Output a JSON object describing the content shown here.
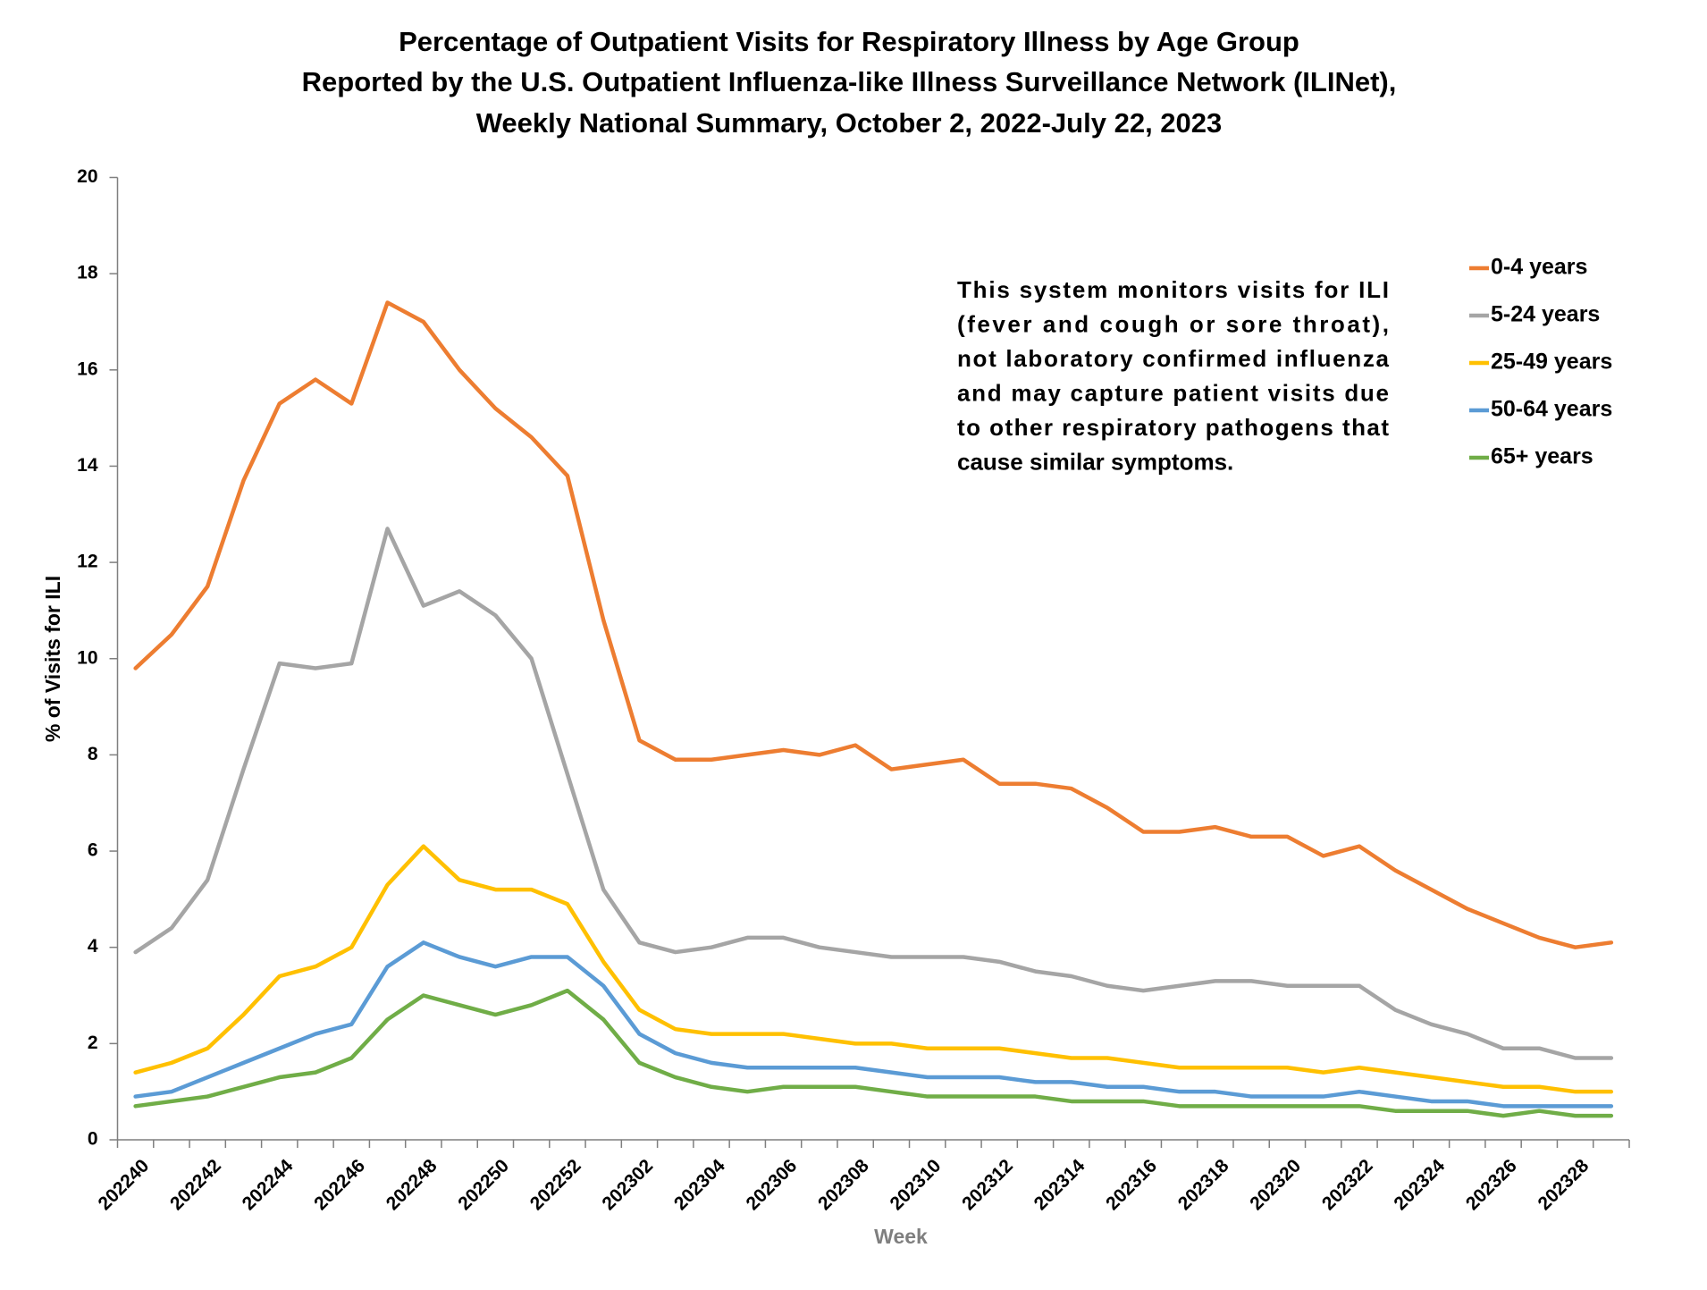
{
  "chart_data": {
    "type": "line",
    "title": [
      "Percentage of Outpatient Visits for Respiratory Illness by Age Group",
      "Reported by the U.S. Outpatient Influenza-like Illness Surveillance Network (ILINet),",
      "Weekly National Summary, October 2, 2022-July 22, 2023"
    ],
    "annotation": [
      "This system monitors visits for ILI",
      "(fever and cough or sore throat),",
      "not laboratory confirmed influenza",
      "and may capture patient visits due",
      "to other respiratory pathogens that",
      "cause similar symptoms."
    ],
    "x_label": "Week",
    "y_label": "% of Visits for ILI",
    "categories": [
      "202240",
      null,
      "202242",
      null,
      "202244",
      null,
      "202246",
      null,
      "202248",
      null,
      "202250",
      null,
      "202252",
      null,
      "202302",
      null,
      "202304",
      null,
      "202306",
      null,
      "202308",
      null,
      "202310",
      null,
      "202312",
      null,
      "202314",
      null,
      "202316",
      null,
      "202318",
      null,
      "202320",
      null,
      "202322",
      null,
      "202324",
      null,
      "202326",
      null,
      "202328",
      null
    ],
    "ylim": [
      0,
      20
    ],
    "yticks": [
      0,
      2,
      4,
      6,
      8,
      10,
      12,
      14,
      16,
      18,
      20
    ],
    "legend": "top-right",
    "series": [
      {
        "name": "0-4 years",
        "color": "#ED7D31",
        "values": [
          9.8,
          10.5,
          11.5,
          13.7,
          15.3,
          15.8,
          15.3,
          17.4,
          17.0,
          16.0,
          15.2,
          14.6,
          13.8,
          10.8,
          8.3,
          7.9,
          7.9,
          8.0,
          8.1,
          8.0,
          8.2,
          7.7,
          7.8,
          7.9,
          7.4,
          7.4,
          7.3,
          6.9,
          6.4,
          6.4,
          6.5,
          6.3,
          6.3,
          5.9,
          6.1,
          5.6,
          5.2,
          4.8,
          4.5,
          4.2,
          4.0,
          4.1
        ]
      },
      {
        "name": "5-24 years",
        "color": "#A5A5A5",
        "values": [
          3.9,
          4.4,
          5.4,
          7.7,
          9.9,
          9.8,
          9.9,
          12.7,
          11.1,
          11.4,
          10.9,
          10.0,
          7.6,
          5.2,
          4.1,
          3.9,
          4.0,
          4.2,
          4.2,
          4.0,
          3.9,
          3.8,
          3.8,
          3.8,
          3.7,
          3.5,
          3.4,
          3.2,
          3.1,
          3.2,
          3.3,
          3.3,
          3.2,
          3.2,
          3.2,
          2.7,
          2.4,
          2.2,
          1.9,
          1.9,
          1.7,
          1.7
        ]
      },
      {
        "name": "25-49 years",
        "color": "#FFC000",
        "values": [
          1.4,
          1.6,
          1.9,
          2.6,
          3.4,
          3.6,
          4.0,
          5.3,
          6.1,
          5.4,
          5.2,
          5.2,
          4.9,
          3.7,
          2.7,
          2.3,
          2.2,
          2.2,
          2.2,
          2.1,
          2.0,
          2.0,
          1.9,
          1.9,
          1.9,
          1.8,
          1.7,
          1.7,
          1.6,
          1.5,
          1.5,
          1.5,
          1.5,
          1.4,
          1.5,
          1.4,
          1.3,
          1.2,
          1.1,
          1.1,
          1.0,
          1.0
        ]
      },
      {
        "name": "50-64 years",
        "color": "#5B9BD5",
        "values": [
          0.9,
          1.0,
          1.3,
          1.6,
          1.9,
          2.2,
          2.4,
          3.6,
          4.1,
          3.8,
          3.6,
          3.8,
          3.8,
          3.2,
          2.2,
          1.8,
          1.6,
          1.5,
          1.5,
          1.5,
          1.5,
          1.4,
          1.3,
          1.3,
          1.3,
          1.2,
          1.2,
          1.1,
          1.1,
          1.0,
          1.0,
          0.9,
          0.9,
          0.9,
          1.0,
          0.9,
          0.8,
          0.8,
          0.7,
          0.7,
          0.7,
          0.7
        ]
      },
      {
        "name": "65+ years",
        "color": "#70AD47",
        "values": [
          0.7,
          0.8,
          0.9,
          1.1,
          1.3,
          1.4,
          1.7,
          2.5,
          3.0,
          2.8,
          2.6,
          2.8,
          3.1,
          2.5,
          1.6,
          1.3,
          1.1,
          1.0,
          1.1,
          1.1,
          1.1,
          1.0,
          0.9,
          0.9,
          0.9,
          0.9,
          0.8,
          0.8,
          0.8,
          0.7,
          0.7,
          0.7,
          0.7,
          0.7,
          0.7,
          0.6,
          0.6,
          0.6,
          0.5,
          0.6,
          0.5,
          0.5
        ]
      }
    ]
  }
}
